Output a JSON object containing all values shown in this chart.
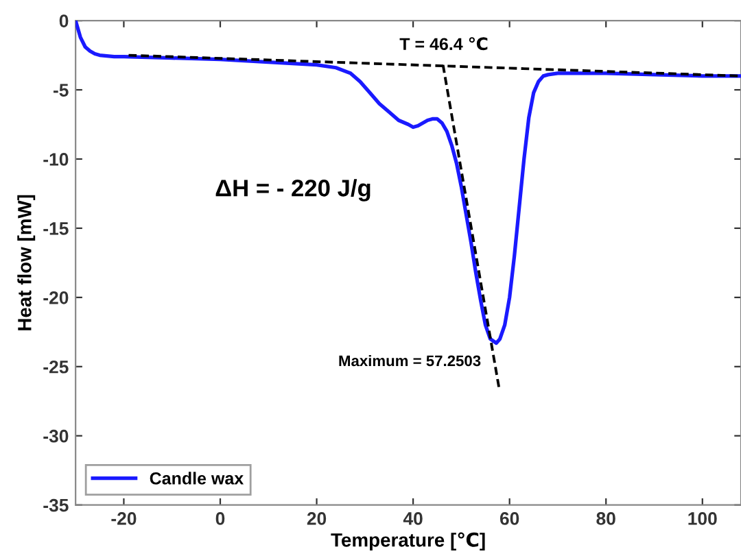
{
  "chart_data": {
    "type": "line",
    "xlabel": "Temperature [℃]",
    "ylabel": "Heat flow [mW]",
    "xlim": [
      -30,
      108
    ],
    "ylim": [
      -35,
      0
    ],
    "xticks": [
      -20,
      0,
      20,
      40,
      60,
      80,
      100
    ],
    "yticks": [
      -35,
      -30,
      -25,
      -20,
      -15,
      -10,
      -5,
      0
    ],
    "grid": false,
    "legend": "bottom left",
    "marker": "none",
    "series": [
      {
        "name": "Candle wax",
        "color": "#1a1aff",
        "line_style": "solid",
        "x": [
          -30,
          -29,
          -28,
          -27,
          -26,
          -25,
          -22,
          -20,
          -10,
          0,
          10,
          20,
          24,
          27,
          29,
          31,
          33,
          35,
          37,
          39,
          40,
          41,
          42,
          43,
          44,
          45,
          46,
          47,
          48,
          49,
          50,
          51,
          52,
          53,
          54,
          55,
          56,
          57.25,
          58,
          59,
          60,
          61,
          62,
          63,
          64,
          65,
          66,
          67,
          68,
          70,
          75,
          80,
          90,
          100,
          108
        ],
        "values": [
          0,
          -1.2,
          -1.9,
          -2.2,
          -2.4,
          -2.5,
          -2.6,
          -2.6,
          -2.7,
          -2.8,
          -3.0,
          -3.2,
          -3.4,
          -3.8,
          -4.4,
          -5.2,
          -6.0,
          -6.6,
          -7.2,
          -7.5,
          -7.7,
          -7.6,
          -7.4,
          -7.2,
          -7.1,
          -7.1,
          -7.4,
          -8.0,
          -9.0,
          -10.3,
          -12.0,
          -14.0,
          -16.0,
          -18.2,
          -20.2,
          -22.0,
          -23.0,
          -23.3,
          -23.0,
          -22.0,
          -20.0,
          -17.0,
          -13.5,
          -10.0,
          -7.0,
          -5.2,
          -4.4,
          -4.0,
          -3.9,
          -3.8,
          -3.8,
          -3.8,
          -3.9,
          -4.0,
          -4.0
        ]
      },
      {
        "color": "#000000",
        "line_style": "dashed",
        "x": [
          -19,
          108
        ],
        "values": [
          -2.5,
          -4.0
        ]
      },
      {
        "color": "#000000",
        "line_style": "dashed",
        "x": [
          46.2,
          57.8
        ],
        "values": [
          -3.2,
          -26.5
        ]
      }
    ],
    "annotations": [
      {
        "text": "T = 46.4 ℃",
        "x": 46.4,
        "y": -3.2
      },
      "ΔH = - 220 J/g",
      {
        "text": "Maximum = 57.2503",
        "x": 57.2503,
        "y": -23.3
      }
    ]
  }
}
